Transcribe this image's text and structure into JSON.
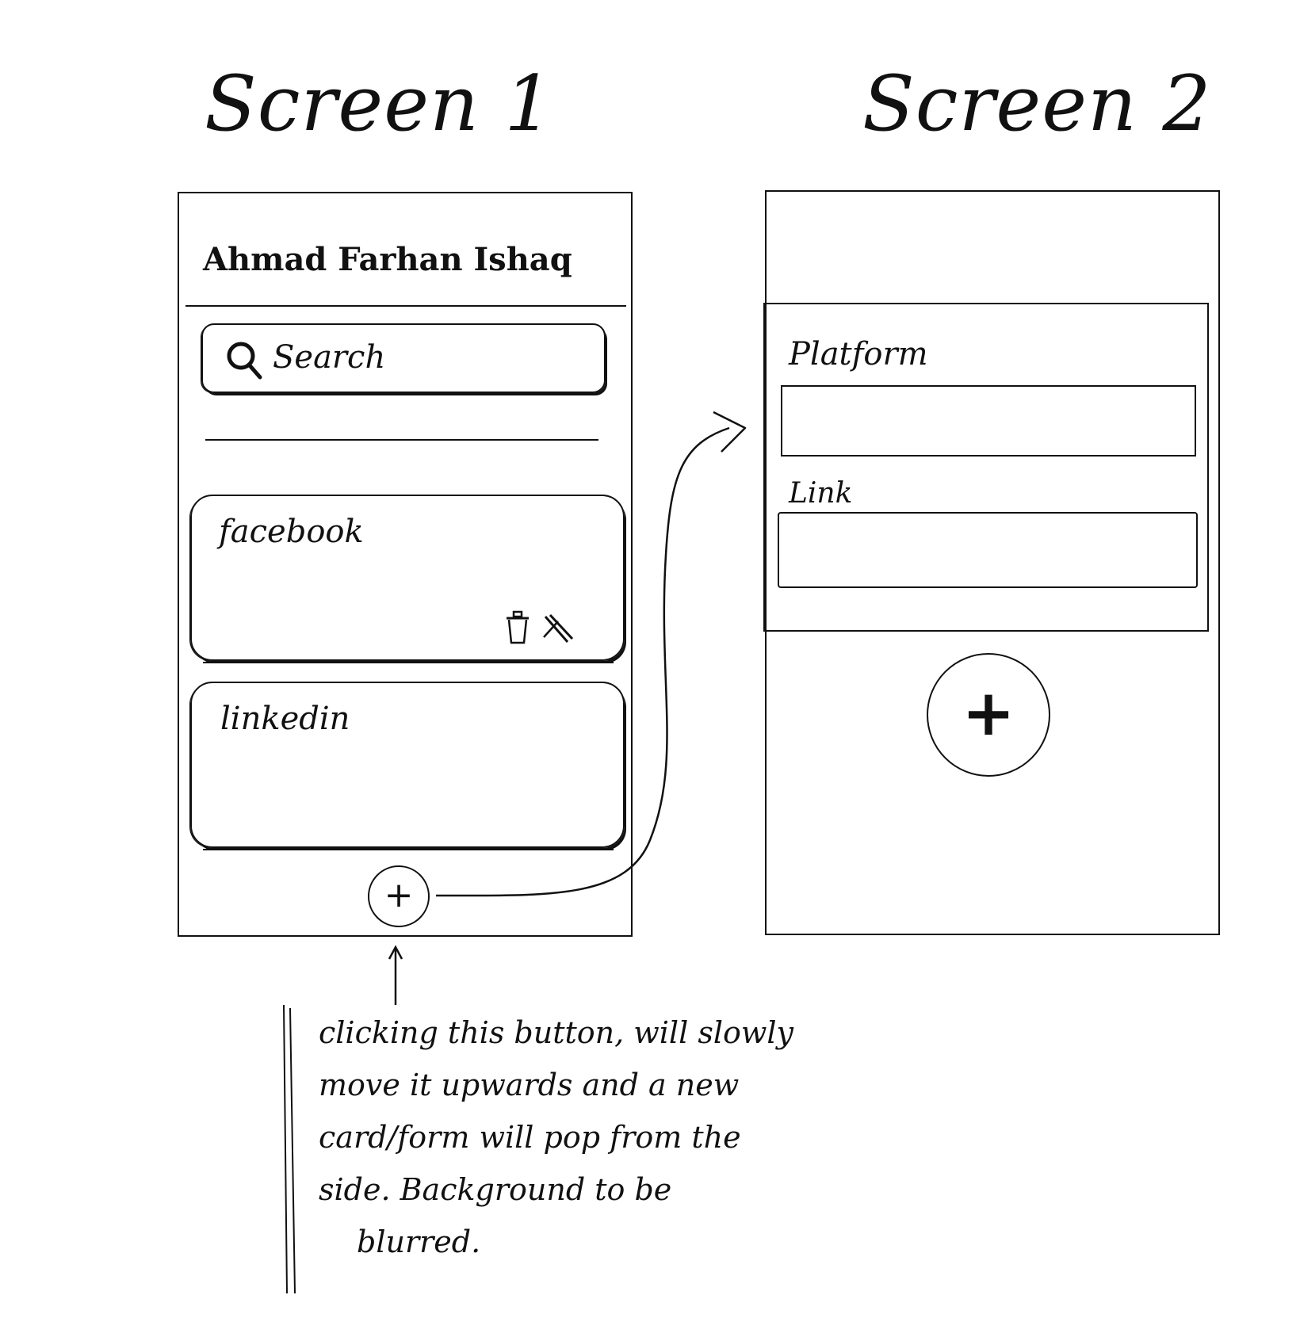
{
  "screen1": {
    "title": "Screen 1",
    "user_name": "Ahmad Farhan Ishaq",
    "search": {
      "label": "Search",
      "icon": "search-icon"
    },
    "cards": [
      {
        "label": "facebook",
        "icons": [
          "trash-icon",
          "edit-icon"
        ]
      },
      {
        "label": "linkedin"
      }
    ],
    "add_button": {
      "symbol": "+"
    }
  },
  "screen2": {
    "title": "Screen 2",
    "form": {
      "platform_label": "Platform",
      "link_label": "Link"
    },
    "add_button": {
      "symbol": "+"
    }
  },
  "annotation": {
    "lines": [
      "clicking this button, will slowly",
      "move it upwards and a new",
      "card/form will pop from the",
      "side. Background to be",
      "blurred."
    ]
  }
}
